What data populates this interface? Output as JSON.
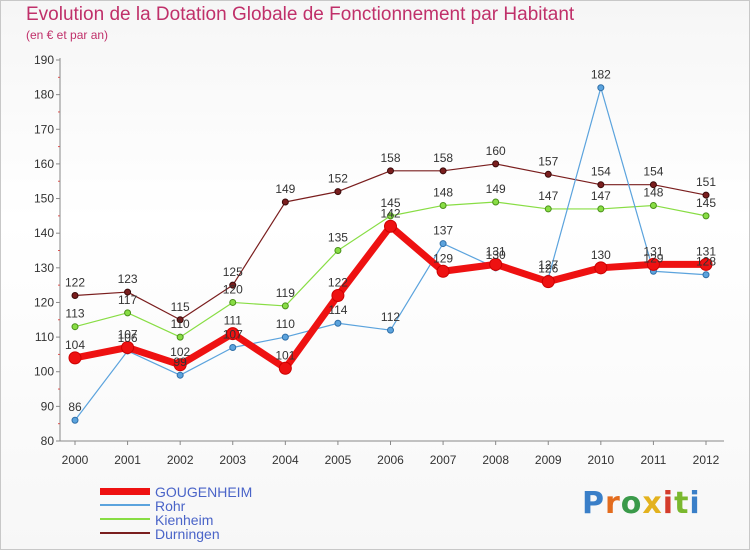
{
  "header": {
    "title": "Evolution de la Dotation Globale de Fonctionnement par Habitant",
    "subtitle": "(en € et par an)"
  },
  "logo": {
    "text": "Proxiti",
    "letter_colors": [
      "#3a7fc8",
      "#e36c1e",
      "#3a9a4a",
      "#e3b21e",
      "#d43c2c",
      "#7ab82e",
      "#3a7fc8"
    ]
  },
  "colors": {
    "title": "#c0306a",
    "axis": "#888888",
    "grid_dash": "#d9534f"
  },
  "chart_data": {
    "type": "line",
    "title": "Evolution de la Dotation Globale de Fonctionnement par Habitant",
    "subtitle": "(en € et par an)",
    "xlabel": "",
    "ylabel": "",
    "x": [
      "2000",
      "2001",
      "2002",
      "2003",
      "2004",
      "2005",
      "2006",
      "2007",
      "2008",
      "2009",
      "2010",
      "2011",
      "2012"
    ],
    "ylim": [
      80,
      190
    ],
    "yticks": [
      80,
      90,
      100,
      110,
      120,
      130,
      140,
      150,
      160,
      170,
      180,
      190
    ],
    "legend": "bottom-left",
    "series": [
      {
        "name": "GOUGENHEIM",
        "color": "#ee1111",
        "values": [
          104,
          107,
          102,
          111,
          101,
          122,
          142,
          129,
          131,
          126,
          130,
          131,
          131
        ],
        "labels": [
          "104",
          "107",
          "102",
          "111",
          "101",
          "122",
          "142",
          "129",
          "131",
          "126",
          "130",
          "131",
          "131"
        ]
      },
      {
        "name": "Rohr",
        "color": "#5ba3dd",
        "values": [
          86,
          106,
          99,
          107,
          110,
          114,
          112,
          137,
          130,
          127,
          182,
          129,
          128
        ],
        "labels": [
          "86",
          "106",
          "99",
          "107",
          "110",
          "114",
          "112",
          "137",
          "130",
          "127",
          "182",
          "129",
          "128"
        ]
      },
      {
        "name": "Kienheim",
        "color": "#88dd44",
        "values": [
          113,
          117,
          110,
          120,
          119,
          135,
          145,
          148,
          149,
          147,
          147,
          148,
          145
        ],
        "labels": [
          "113",
          "117",
          "110",
          "120",
          "119",
          "135",
          "145",
          "148",
          "149",
          "147",
          "147",
          "148",
          "145"
        ]
      },
      {
        "name": "Durningen",
        "color": "#7a1e1e",
        "values": [
          122,
          123,
          115,
          125,
          149,
          152,
          158,
          158,
          160,
          157,
          154,
          154,
          151
        ],
        "labels": [
          "122",
          "123",
          "115",
          "125",
          "149",
          "152",
          "158",
          "158",
          "160",
          "157",
          "154",
          "154",
          "151"
        ]
      }
    ]
  }
}
